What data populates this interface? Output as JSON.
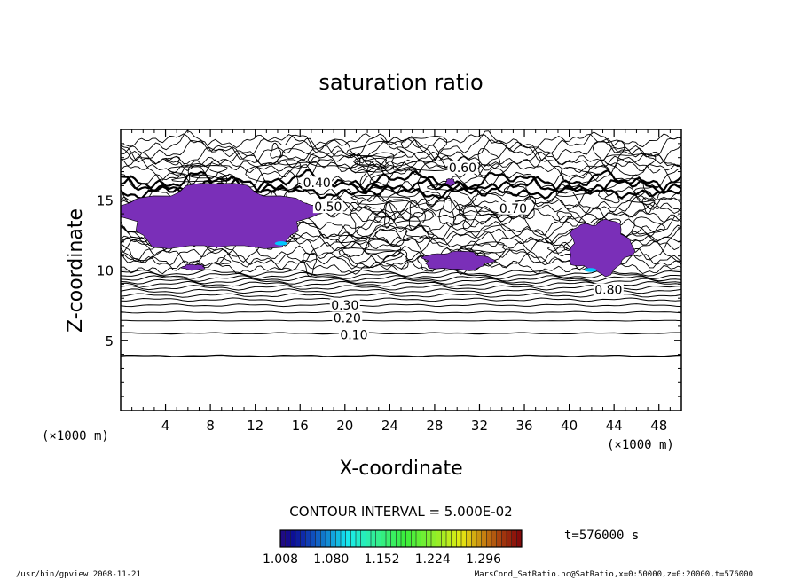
{
  "chart_data": {
    "type": "contour",
    "title": "saturation ratio",
    "xlabel": "X-coordinate",
    "ylabel": "Z-coordinate",
    "x_unit": "(×1000 m)",
    "y_unit": "(×1000 m)",
    "xlim": [
      0,
      50
    ],
    "ylim": [
      0,
      20
    ],
    "x_ticks": [
      4,
      8,
      12,
      16,
      20,
      24,
      28,
      32,
      36,
      40,
      44,
      48
    ],
    "y_ticks": [
      5,
      10,
      15
    ],
    "contour_interval_label": "CONTOUR INTERVAL = 5.000E-02",
    "contour_labels": [
      "0.10",
      "0.20",
      "0.30",
      "0.40",
      "0.50",
      "0.60",
      "0.70",
      "0.80"
    ],
    "shaded_regions": [
      {
        "x": [
          0.2,
          17.0
        ],
        "z": [
          11.5,
          16.0
        ]
      },
      {
        "x": [
          27.0,
          33.0
        ],
        "z": [
          10.0,
          11.3
        ]
      },
      {
        "x": [
          40.0,
          45.5
        ],
        "z": [
          9.8,
          13.5
        ]
      },
      {
        "x": [
          29.0,
          29.8
        ],
        "z": [
          16.0,
          16.5
        ]
      },
      {
        "x": [
          5.5,
          7.5
        ],
        "z": [
          10.0,
          10.4
        ]
      }
    ],
    "colorbar": {
      "tick_labels": [
        "1.008",
        "1.080",
        "1.152",
        "1.224",
        "1.296"
      ],
      "range": [
        1.008,
        1.35
      ]
    },
    "time_label": "t=576000 s",
    "footer_left": "/usr/bin/gpview   2008-11-21",
    "footer_right": "MarsCond_SatRatio.nc@SatRatio,x=0:50000,z=0:20000,t=576000",
    "colors": {
      "fill": "#7a2fb8",
      "line": "#000000",
      "hot": "#00c8ff"
    }
  }
}
